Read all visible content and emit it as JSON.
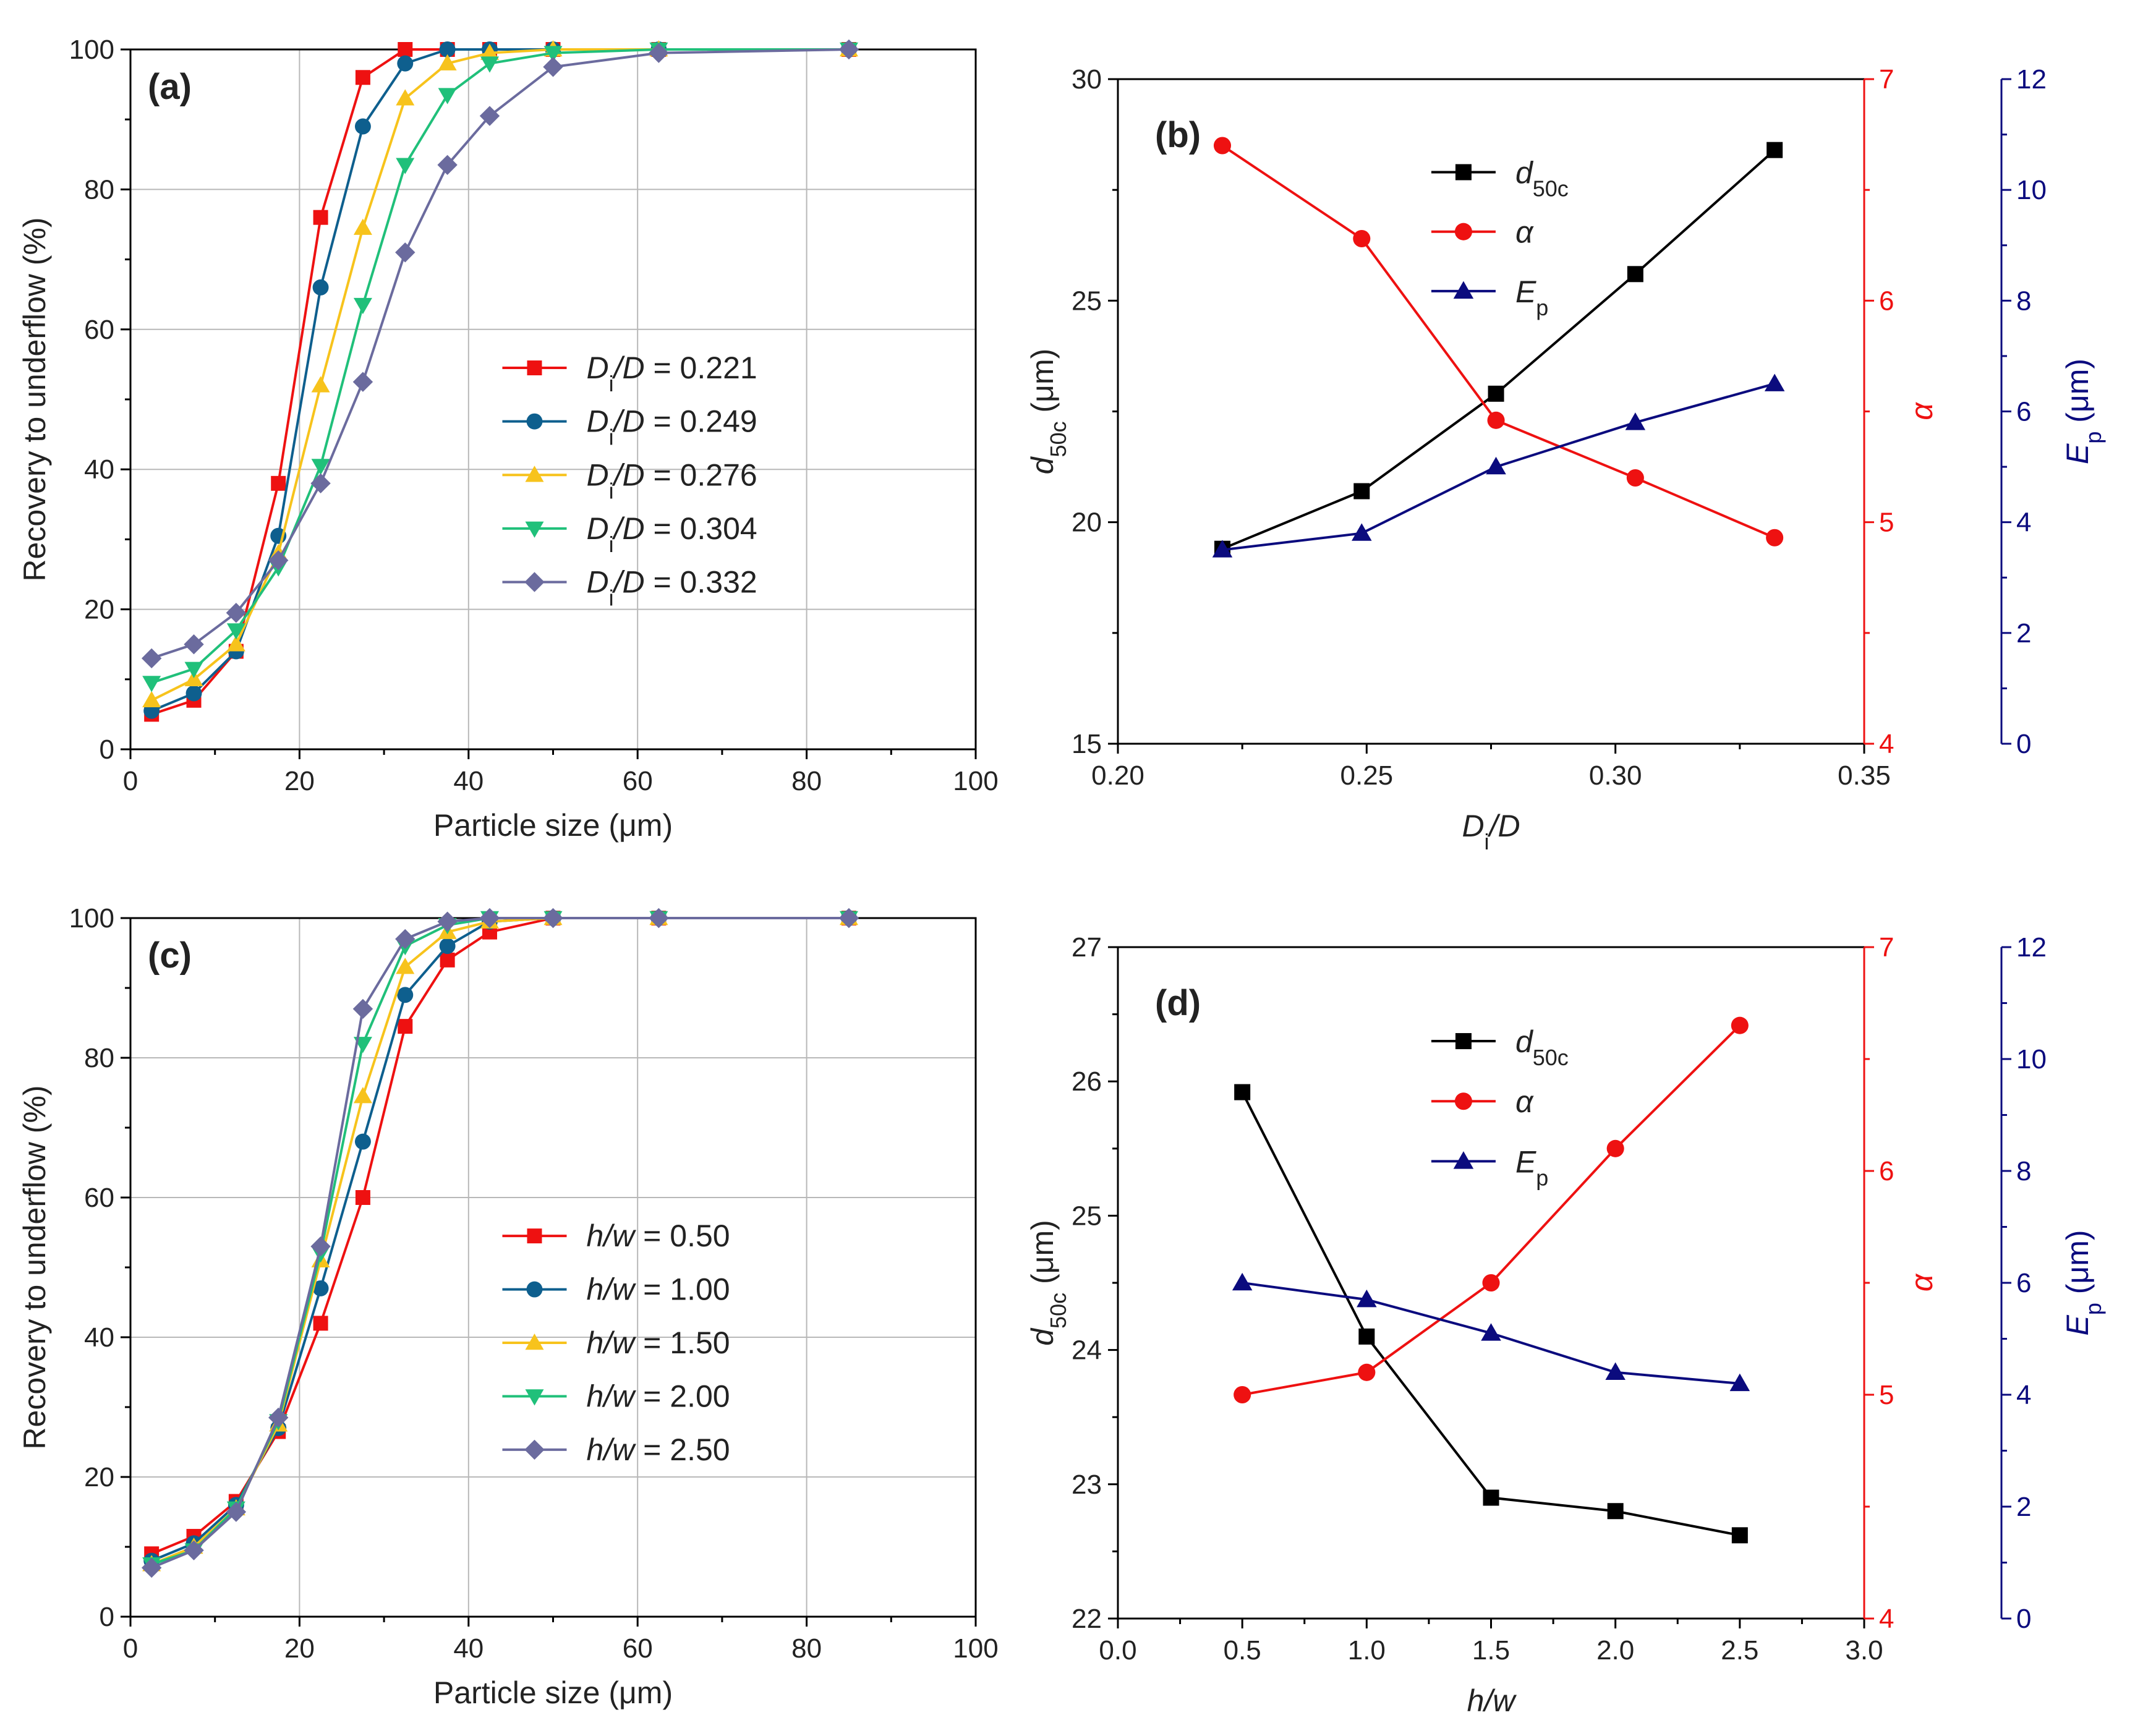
{
  "chart_data": [
    {
      "panel": "a",
      "type": "line",
      "panel_label": "(a)",
      "xlabel": "Particle size (μm)",
      "ylabel": "Recovery to underflow (%)",
      "xlim": [
        0,
        100
      ],
      "ylim": [
        0,
        100
      ],
      "xticks": [
        0,
        20,
        40,
        60,
        80,
        100
      ],
      "yticks": [
        0,
        20,
        40,
        60,
        80,
        100
      ],
      "grid": "on",
      "legend_position": "center-right",
      "x": [
        2.5,
        7.5,
        12.5,
        17.5,
        22.5,
        27.5,
        32.5,
        37.5,
        42.5,
        50,
        62.5,
        85
      ],
      "series": [
        {
          "name": "Di/D = 0.221",
          "legend": {
            "num": "D",
            "sub": "i",
            "rest": "/D",
            "value": " = 0.221"
          },
          "color": "#ee1111",
          "marker": "square",
          "values": [
            5,
            7,
            14,
            38,
            76,
            96,
            100,
            100,
            100,
            100,
            100,
            100
          ]
        },
        {
          "name": "Di/D = 0.249",
          "legend": {
            "num": "D",
            "sub": "i",
            "rest": "/D",
            "value": " = 0.249"
          },
          "color": "#0e5f8e",
          "marker": "circle",
          "values": [
            5.5,
            8,
            14,
            30.5,
            66,
            89,
            98,
            100,
            100,
            100,
            100,
            100
          ]
        },
        {
          "name": "Di/D = 0.276",
          "legend": {
            "num": "D",
            "sub": "i",
            "rest": "/D",
            "value": " = 0.276"
          },
          "color": "#f7c31c",
          "marker": "triangle-up",
          "values": [
            7,
            10,
            15,
            28,
            52,
            74.5,
            93,
            98,
            99.5,
            100,
            100,
            100
          ]
        },
        {
          "name": "Di/D = 0.304",
          "legend": {
            "num": "D",
            "sub": "i",
            "rest": "/D",
            "value": " = 0.304"
          },
          "color": "#20c07a",
          "marker": "triangle-down",
          "values": [
            9.5,
            11.5,
            17,
            26,
            40.5,
            63.5,
            83.5,
            93.5,
            98,
            99.5,
            100,
            100
          ]
        },
        {
          "name": "Di/D = 0.332",
          "legend": {
            "num": "D",
            "sub": "i",
            "rest": "/D",
            "value": " = 0.332"
          },
          "color": "#6b6b9e",
          "marker": "diamond",
          "values": [
            13,
            15,
            19.5,
            27,
            38,
            52.5,
            71,
            83.5,
            90.5,
            97.5,
            99.5,
            100
          ]
        }
      ]
    },
    {
      "panel": "b",
      "type": "line",
      "panel_label": "(b)",
      "xlabel": {
        "main": "D",
        "sub": "i",
        "rest": "/D"
      },
      "xlim": [
        0.2,
        0.35
      ],
      "xticks": [
        0.2,
        0.25,
        0.3,
        0.35
      ],
      "xtick_labels": [
        "0.20",
        "0.25",
        "0.30",
        "0.35"
      ],
      "x": [
        0.221,
        0.249,
        0.276,
        0.304,
        0.332
      ],
      "axes": {
        "left": {
          "label": {
            "main": "d",
            "sub": "50c",
            "rest": " (μm)"
          },
          "ylim": [
            15,
            30
          ],
          "ticks": [
            15,
            20,
            25,
            30
          ],
          "color": "#000000"
        },
        "right1": {
          "label": "α",
          "ylim": [
            4,
            7
          ],
          "ticks": [
            4,
            5,
            6,
            7
          ],
          "color": "#ee1111"
        },
        "right2": {
          "label": {
            "main": "E",
            "sub": "p",
            "rest": " (μm)"
          },
          "ylim": [
            0,
            12
          ],
          "ticks": [
            0,
            2,
            4,
            6,
            8,
            10,
            12
          ],
          "color": "#0b0b7e"
        }
      },
      "legend_position": "top-center",
      "series": [
        {
          "name": "d50c",
          "legend": {
            "main": "d",
            "sub": "50c"
          },
          "axis": "left",
          "color": "#000000",
          "marker": "square",
          "values": [
            19.4,
            20.7,
            22.9,
            25.6,
            28.4
          ]
        },
        {
          "name": "α",
          "legend": {
            "main": "α",
            "sub": ""
          },
          "axis": "right1",
          "color": "#ee1111",
          "marker": "circle",
          "values": [
            6.7,
            6.28,
            5.46,
            5.2,
            4.93
          ]
        },
        {
          "name": "Ep",
          "legend": {
            "main": "E",
            "sub": "p"
          },
          "axis": "right2",
          "color": "#0b0b7e",
          "marker": "triangle-up",
          "values": [
            3.5,
            3.8,
            5.0,
            5.8,
            6.5
          ]
        }
      ]
    },
    {
      "panel": "c",
      "type": "line",
      "panel_label": "(c)",
      "xlabel": "Particle size (μm)",
      "ylabel": "Recovery to underflow (%)",
      "xlim": [
        0,
        100
      ],
      "ylim": [
        0,
        100
      ],
      "xticks": [
        0,
        20,
        40,
        60,
        80,
        100
      ],
      "yticks": [
        0,
        20,
        40,
        60,
        80,
        100
      ],
      "grid": "on",
      "legend_position": "center-right",
      "x": [
        2.5,
        7.5,
        12.5,
        17.5,
        22.5,
        27.5,
        32.5,
        37.5,
        42.5,
        50,
        62.5,
        85
      ],
      "series": [
        {
          "name": "h/w = 0.50",
          "legend": {
            "num": "h",
            "sub": "",
            "rest": "/w",
            "value": " = 0.50"
          },
          "color": "#ee1111",
          "marker": "square",
          "values": [
            9,
            11.5,
            16.5,
            26.5,
            42,
            60,
            84.5,
            94,
            98,
            100,
            100,
            100
          ]
        },
        {
          "name": "h/w = 1.00",
          "legend": {
            "num": "h",
            "sub": "",
            "rest": "/w",
            "value": " = 1.00"
          },
          "color": "#0e5f8e",
          "marker": "circle",
          "values": [
            8,
            10.5,
            16,
            27,
            47,
            68,
            89,
            96,
            99.5,
            100,
            100,
            100
          ]
        },
        {
          "name": "h/w = 1.50",
          "legend": {
            "num": "h",
            "sub": "",
            "rest": "/w",
            "value": " = 1.50"
          },
          "color": "#f7c31c",
          "marker": "triangle-up",
          "values": [
            7.5,
            10,
            15.5,
            27.5,
            51,
            74.5,
            93,
            98,
            99.5,
            100,
            100,
            100
          ]
        },
        {
          "name": "h/w = 2.00",
          "legend": {
            "num": "h",
            "sub": "",
            "rest": "/w",
            "value": " = 2.00"
          },
          "color": "#20c07a",
          "marker": "triangle-down",
          "values": [
            7.5,
            9.5,
            15.5,
            28,
            52,
            82,
            96,
            99,
            100,
            100,
            100,
            100
          ]
        },
        {
          "name": "h/w = 2.50",
          "legend": {
            "num": "h",
            "sub": "",
            "rest": "/w",
            "value": " = 2.50"
          },
          "color": "#6b6b9e",
          "marker": "diamond",
          "values": [
            7,
            9.5,
            15,
            28.5,
            53,
            87,
            97,
            99.5,
            100,
            100,
            100,
            100
          ]
        }
      ]
    },
    {
      "panel": "d",
      "type": "line",
      "panel_label": "(d)",
      "xlabel": {
        "main": "h",
        "sub": "",
        "rest": "/w"
      },
      "xlim": [
        0,
        3
      ],
      "xticks": [
        0,
        0.5,
        1,
        1.5,
        2,
        2.5,
        3
      ],
      "xtick_labels": [
        "0.0",
        "0.5",
        "1.0",
        "1.5",
        "2.0",
        "2.5",
        "3.0"
      ],
      "x": [
        0.5,
        1.0,
        1.5,
        2.0,
        2.5
      ],
      "axes": {
        "left": {
          "label": {
            "main": "d",
            "sub": "50c",
            "rest": " (μm)"
          },
          "ylim": [
            22,
            27
          ],
          "ticks": [
            22,
            23,
            24,
            25,
            26,
            27
          ],
          "color": "#000000"
        },
        "right1": {
          "label": "α",
          "ylim": [
            4,
            7
          ],
          "ticks": [
            4,
            5,
            6,
            7
          ],
          "color": "#ee1111"
        },
        "right2": {
          "label": {
            "main": "E",
            "sub": "p",
            "rest": " (μm)"
          },
          "ylim": [
            0,
            12
          ],
          "ticks": [
            0,
            2,
            4,
            6,
            8,
            10,
            12
          ],
          "color": "#0b0b7e"
        }
      },
      "legend_position": "top-center",
      "series": [
        {
          "name": "d50c",
          "legend": {
            "main": "d",
            "sub": "50c"
          },
          "axis": "left",
          "color": "#000000",
          "marker": "square",
          "values": [
            25.92,
            24.1,
            22.9,
            22.8,
            22.62
          ]
        },
        {
          "name": "α",
          "legend": {
            "main": "α",
            "sub": ""
          },
          "axis": "right1",
          "color": "#ee1111",
          "marker": "circle",
          "values": [
            5.0,
            5.1,
            5.5,
            6.1,
            6.65
          ]
        },
        {
          "name": "Ep",
          "legend": {
            "main": "E",
            "sub": "p"
          },
          "axis": "right2",
          "color": "#0b0b7e",
          "marker": "triangle-up",
          "values": [
            6.0,
            5.7,
            5.1,
            4.4,
            4.2
          ]
        }
      ]
    }
  ]
}
